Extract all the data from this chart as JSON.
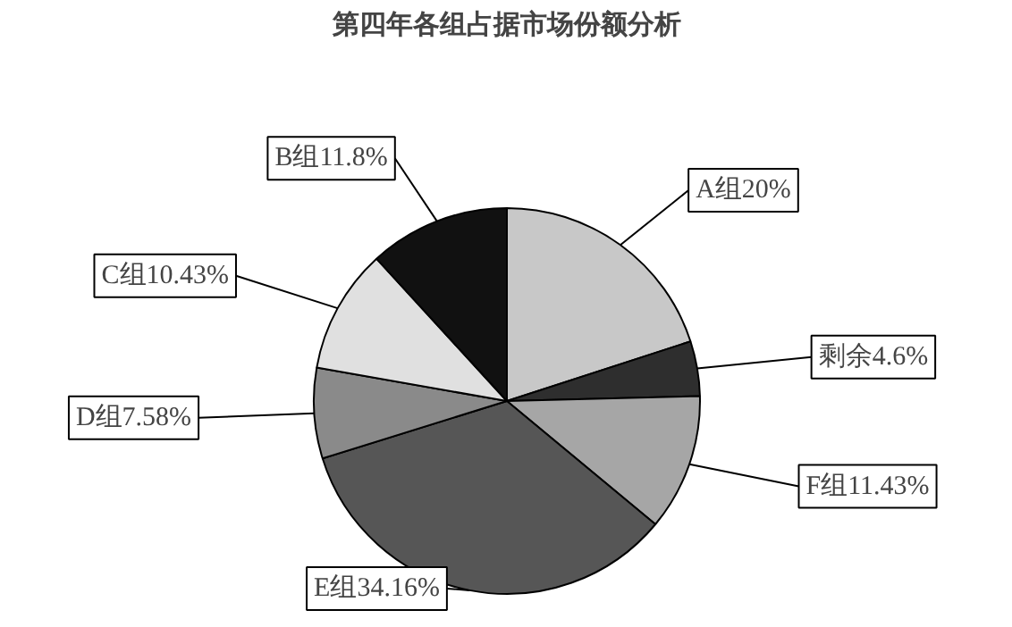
{
  "chart_data": {
    "type": "pie",
    "title": "第四年各组占据市场份额分析",
    "categories": [
      "A组",
      "剩余",
      "F组",
      "E组",
      "D组",
      "C组",
      "B组"
    ],
    "values": [
      20,
      4.6,
      11.43,
      34.16,
      7.58,
      10.43,
      11.8
    ],
    "value_labels": [
      "20%",
      "4.6%",
      "11.43%",
      "34.16%",
      "7.58%",
      "10.43%",
      "11.8%"
    ],
    "colors": [
      "#c8c8c8",
      "#2e2e2e",
      "#a6a6a6",
      "#565656",
      "#8a8a8a",
      "#e0e0e0",
      "#111111"
    ]
  }
}
